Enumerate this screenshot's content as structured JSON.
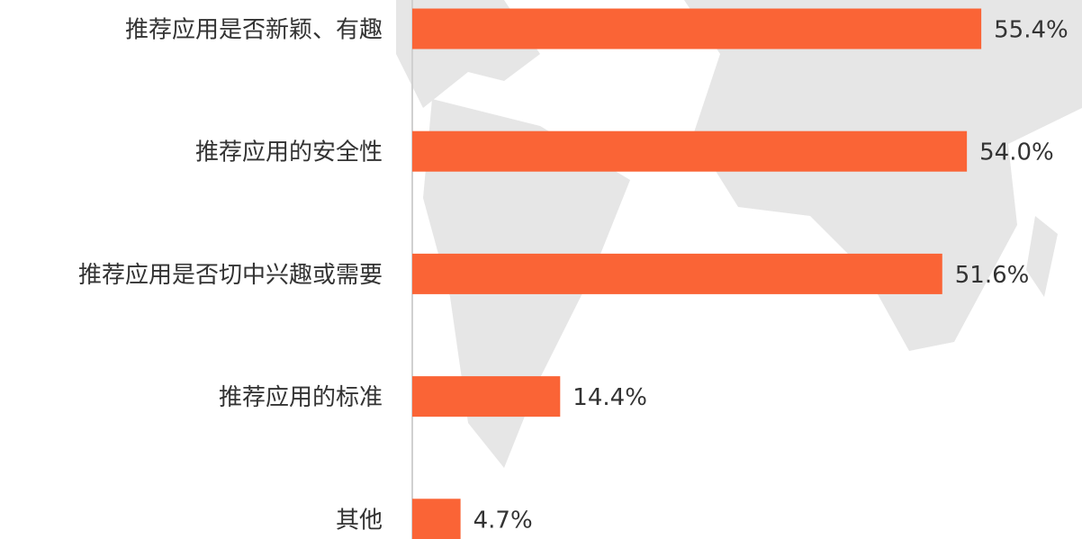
{
  "chart_data": {
    "type": "bar",
    "orientation": "horizontal",
    "categories": [
      "推荐应用是否新颖、有趣",
      "推荐应用的安全性",
      "推荐应用是否切中兴趣或需要",
      "推荐应用的标准",
      "其他"
    ],
    "values": [
      55.4,
      54.0,
      51.6,
      14.4,
      4.7
    ],
    "value_labels": [
      "55.4%",
      "54.0%",
      "51.6%",
      "14.4%",
      "4.7%"
    ],
    "color": "#fa6436"
  }
}
